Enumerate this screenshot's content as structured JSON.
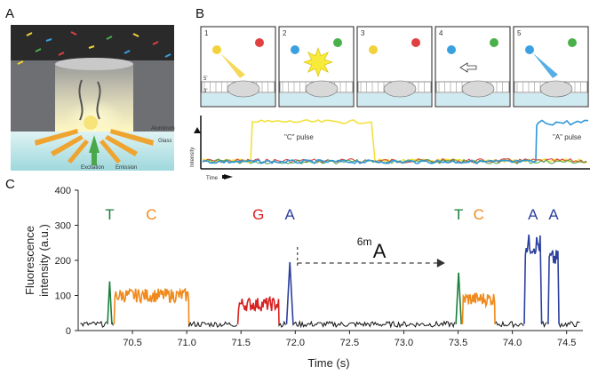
{
  "panel_a": {
    "label": "A",
    "aluminum": "Aluminum",
    "glass": "Glass",
    "excitation": "Excitation",
    "emission": "Emission"
  },
  "panel_b": {
    "label": "B",
    "steps": [
      "1",
      "2",
      "3",
      "4",
      "5"
    ],
    "strand_5": "5'",
    "strand_3": "3'",
    "c_pulse": "\"C\" pulse",
    "a_pulse": "\"A\" pulse",
    "ylabel": "Intensity",
    "xlabel": "Time"
  },
  "panel_c": {
    "label": "C",
    "mod_sup": "6m",
    "mod_base": "A"
  },
  "colors": {
    "T": "#1a7f3a",
    "C": "#f08a1c",
    "G": "#d92121",
    "A": "#2b3f9e",
    "background": "#111111"
  },
  "chart_data": {
    "type": "line",
    "title": "",
    "xlabel": "Time (s)",
    "ylabel": "Fluorescence intensity (a.u.)",
    "xlim": [
      70.0,
      74.65
    ],
    "ylim": [
      0,
      400
    ],
    "xticks": [
      "70.5",
      "71.0",
      "71.5",
      "72.0",
      "72.5",
      "73.0",
      "73.5",
      "74.0",
      "74.5"
    ],
    "yticks": [
      "0",
      "100",
      "200",
      "300",
      "400"
    ],
    "grid": false,
    "pulses": [
      {
        "base": "T",
        "start": 70.27,
        "end": 70.31,
        "peak": 140
      },
      {
        "base": "C",
        "start": 70.33,
        "end": 71.02,
        "level": 100
      },
      {
        "base": "G",
        "start": 71.47,
        "end": 71.85,
        "level": 75
      },
      {
        "base": "A",
        "start": 71.92,
        "end": 71.98,
        "peak": 195
      },
      {
        "base": "T",
        "start": 73.48,
        "end": 73.53,
        "peak": 165
      },
      {
        "base": "C",
        "start": 73.54,
        "end": 73.84,
        "level": 90
      },
      {
        "base": "A",
        "start": 74.11,
        "end": 74.27,
        "peak": 275
      },
      {
        "base": "A",
        "start": 74.33,
        "end": 74.43,
        "peak": 230
      }
    ],
    "baseline_level": 18,
    "annotation": {
      "text": "6mA",
      "from_x": 72.02,
      "to_x": 73.38,
      "y": 195
    }
  }
}
